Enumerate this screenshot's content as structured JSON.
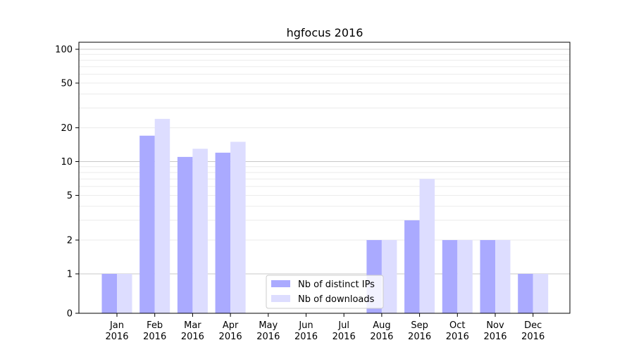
{
  "chart_data": {
    "type": "bar",
    "title": "hgfocus 2016",
    "xlabel": "",
    "ylabel": "",
    "yscale": "symlog",
    "ylim": [
      0,
      130
    ],
    "yticks": [
      0,
      1,
      2,
      5,
      10,
      20,
      50,
      100
    ],
    "ytick_labels": [
      "0",
      "1",
      "2",
      "5",
      "10",
      "20",
      "50",
      "100"
    ],
    "categories": [
      {
        "month": "Jan",
        "year": "2016"
      },
      {
        "month": "Feb",
        "year": "2016"
      },
      {
        "month": "Mar",
        "year": "2016"
      },
      {
        "month": "Apr",
        "year": "2016"
      },
      {
        "month": "May",
        "year": "2016"
      },
      {
        "month": "Jun",
        "year": "2016"
      },
      {
        "month": "Jul",
        "year": "2016"
      },
      {
        "month": "Aug",
        "year": "2016"
      },
      {
        "month": "Sep",
        "year": "2016"
      },
      {
        "month": "Oct",
        "year": "2016"
      },
      {
        "month": "Nov",
        "year": "2016"
      },
      {
        "month": "Dec",
        "year": "2016"
      }
    ],
    "series": [
      {
        "name": "Nb of distinct IPs",
        "color": "#aaaaff",
        "values": [
          1,
          17,
          11,
          12,
          0,
          0,
          0,
          2,
          3,
          2,
          2,
          1
        ]
      },
      {
        "name": "Nb of downloads",
        "color": "#ddddff",
        "values": [
          1,
          24,
          13,
          15,
          0,
          0,
          0,
          2,
          7,
          2,
          2,
          1
        ]
      }
    ],
    "grid": "horizontal",
    "legend_position": "lower-center"
  }
}
